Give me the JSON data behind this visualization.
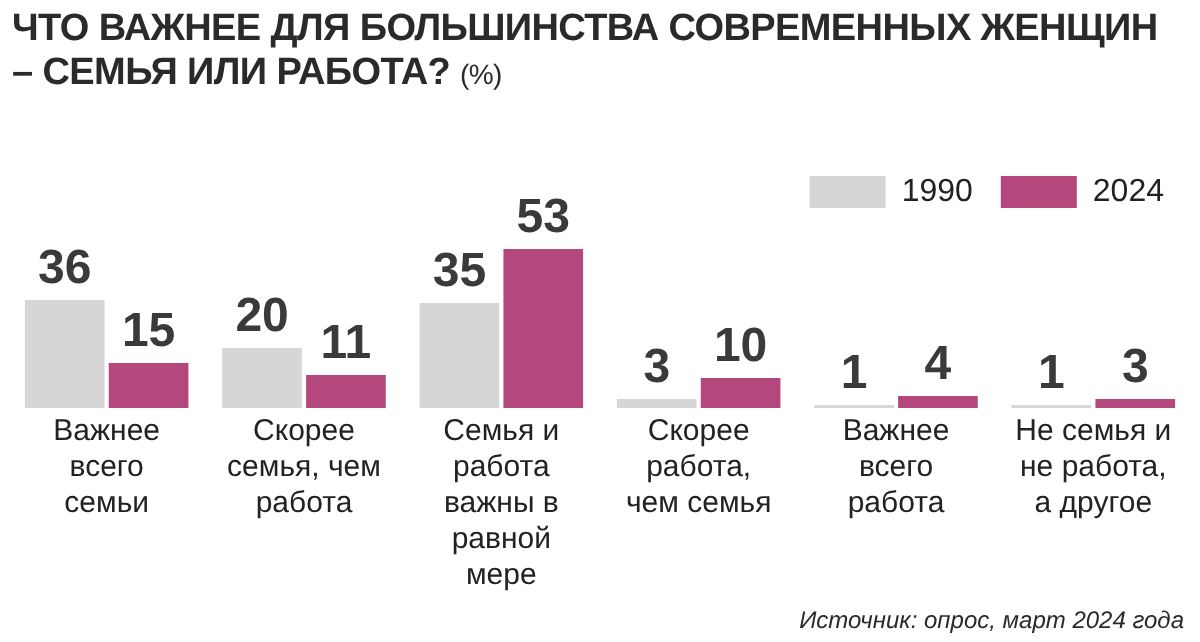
{
  "chart_data": {
    "type": "bar",
    "title": "ЧТО ВАЖНЕЕ ДЛЯ БОЛЬШИНСТВА СОВРЕМЕННЫХ ЖЕНЩИН – СЕМЬЯ ИЛИ РАБОТА?",
    "subtitle": "(%)",
    "categories": [
      "Важнее всего семьи",
      "Скорее семья, чем работа",
      "Семья и работа важны в равной мере",
      "Скорее работа, чем семья",
      "Важнее всего работа",
      "Не семья и не работа, а другое"
    ],
    "series": [
      {
        "name": "1990",
        "color": "#d6d6d6",
        "values": [
          36,
          20,
          35,
          3,
          1,
          1
        ]
      },
      {
        "name": "2024",
        "color": "#b4487c",
        "values": [
          15,
          11,
          53,
          10,
          4,
          3
        ]
      }
    ],
    "data_labels": true,
    "grid": false,
    "legend": "top right",
    "annotations": [
      "Источник: опрос, март 2024 года"
    ]
  }
}
